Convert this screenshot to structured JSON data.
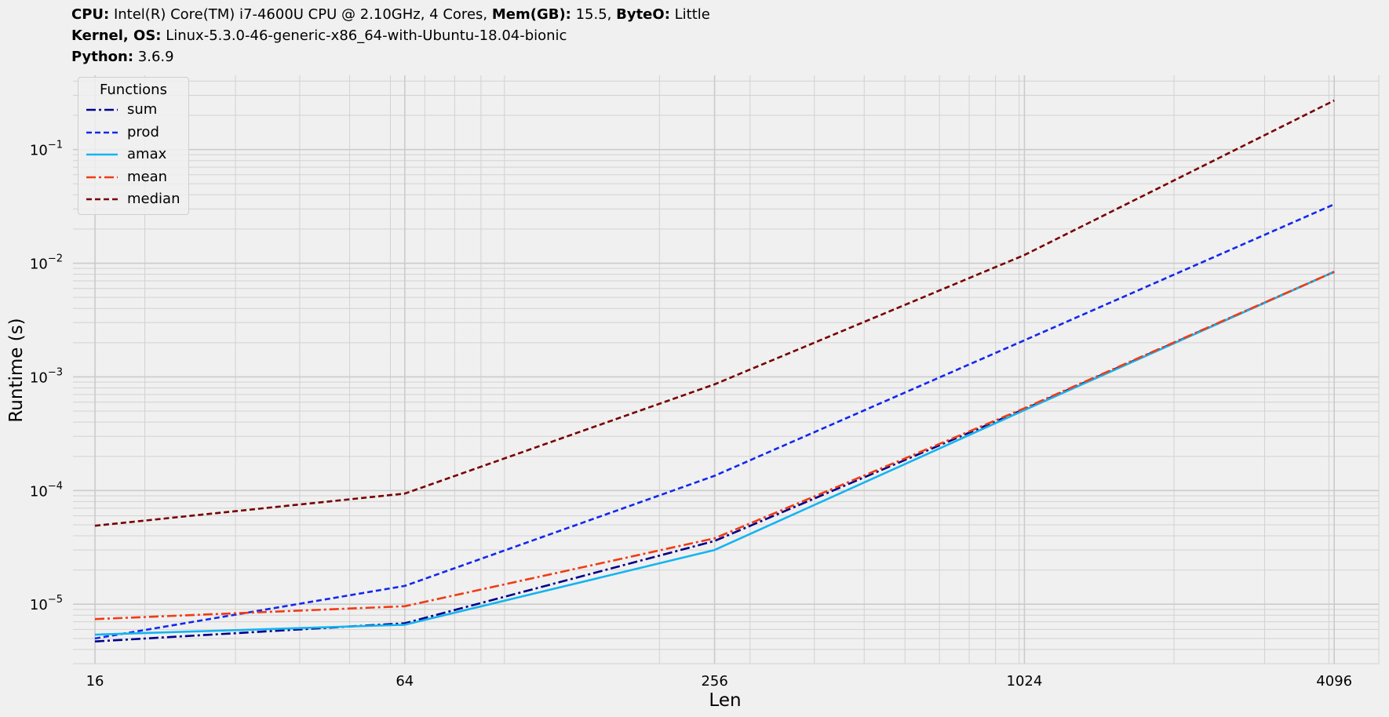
{
  "header": {
    "line1": [
      {
        "key": "CPU",
        "sep": ":",
        "value": " Intel(R) Core(TM) i7-4600U CPU @ 2.10GHz, 4 Cores, "
      },
      {
        "key": "Mem(GB)",
        "sep": ":",
        "value": " 15.5, "
      },
      {
        "key": "ByteO",
        "sep": ":",
        "value": " Little"
      }
    ],
    "line2": [
      {
        "key": "Kernel, OS",
        "sep": ":",
        "value": " Linux-5.3.0-46-generic-x86_64-with-Ubuntu-18.04-bionic"
      }
    ],
    "line3": [
      {
        "key": "Python",
        "sep": ":",
        "value": " 3.6.9"
      }
    ]
  },
  "chart_data": {
    "type": "line",
    "xlabel": "Len",
    "ylabel": "Runtime (s)",
    "x_scale": "log2",
    "y_scale": "log10",
    "xlim": [
      14.5,
      5000
    ],
    "ylim": [
      3e-06,
      0.45
    ],
    "grid": true,
    "x_ticks": [
      16,
      64,
      256,
      1024,
      4096
    ],
    "x_tick_labels": [
      "16",
      "64",
      "256",
      "1024",
      "4096"
    ],
    "y_ticks": [
      1e-05,
      0.0001,
      0.001,
      0.01,
      0.1
    ],
    "y_tick_labels": [
      {
        "base": "10",
        "exp": "−5"
      },
      {
        "base": "10",
        "exp": "−4"
      },
      {
        "base": "10",
        "exp": "−3"
      },
      {
        "base": "10",
        "exp": "−2"
      },
      {
        "base": "10",
        "exp": "−1"
      }
    ],
    "x": [
      16,
      64,
      256,
      1024,
      4096
    ],
    "legend": {
      "title": "Functions",
      "placement": "top-left"
    },
    "series": [
      {
        "name": "sum",
        "color": "#00008b",
        "dash": "12 4 3 4",
        "values": [
          4.7e-06,
          6.8e-06,
          3.6e-05,
          0.00052,
          0.0084
        ]
      },
      {
        "name": "prod",
        "color": "#1428ec",
        "dash": "7 4",
        "values": [
          5e-06,
          1.45e-05,
          0.000135,
          0.0021,
          0.033
        ]
      },
      {
        "name": "amax",
        "color": "#14b4f0",
        "dash": "",
        "values": [
          5.4e-06,
          6.6e-06,
          3e-05,
          0.00051,
          0.0084
        ]
      },
      {
        "name": "mean",
        "color": "#f03c14",
        "dash": "12 4 3 4",
        "values": [
          7.4e-06,
          9.6e-06,
          3.8e-05,
          0.00053,
          0.0084
        ]
      },
      {
        "name": "median",
        "color": "#780000",
        "dash": "7 4",
        "values": [
          4.9e-05,
          9.4e-05,
          0.00086,
          0.0118,
          0.27
        ]
      }
    ]
  }
}
